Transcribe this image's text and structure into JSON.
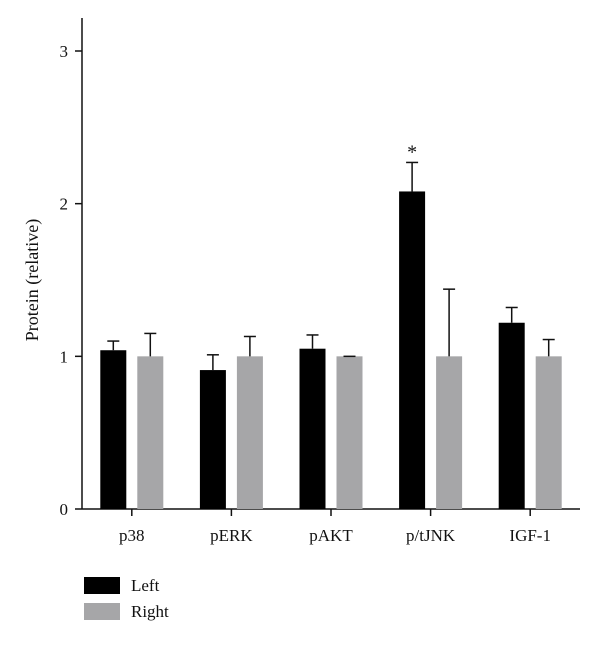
{
  "chart_data": {
    "type": "bar",
    "categories": [
      "p38",
      "pERK",
      "pAKT",
      "p/tJNK",
      "IGF-1"
    ],
    "ylabel": "Protein (relative)",
    "xlabel": "",
    "ylim": [
      0,
      3.2
    ],
    "yticks": [
      0,
      1,
      2,
      3
    ],
    "grid": false,
    "legend_position": "bottom-left",
    "series": [
      {
        "name": "Left",
        "color": "#000000",
        "values": [
          1.04,
          0.91,
          1.05,
          2.08,
          1.22
        ],
        "errors": [
          0.06,
          0.1,
          0.09,
          0.19,
          0.1
        ]
      },
      {
        "name": "Right",
        "color": "#a6a6a8",
        "values": [
          1.0,
          1.0,
          1.0,
          1.0,
          1.0
        ],
        "errors": [
          0.15,
          0.13,
          0.0,
          0.44,
          0.11
        ]
      }
    ],
    "annotations": [
      {
        "category": "p/tJNK",
        "series": "Left",
        "text": "*"
      }
    ]
  }
}
